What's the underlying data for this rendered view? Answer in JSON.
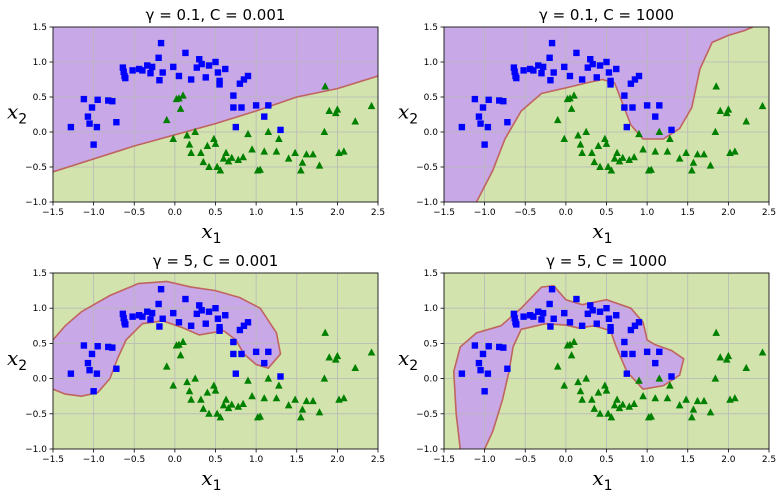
{
  "colors": {
    "purple_region": "#c8a8e6",
    "green_region": "#d2e3ad",
    "boundary": "#c0645f",
    "class0": "#0000ff",
    "class1": "#008000",
    "grid": "#b8b8b8"
  },
  "chart_data": [
    {
      "type": "scatter",
      "title": "γ = 0.1, C = 0.001",
      "xlabel": "x",
      "xlabel_sub": "1",
      "ylabel": "x",
      "ylabel_sub": "2",
      "xlim": [
        -1.5,
        2.5
      ],
      "ylim": [
        -1.0,
        1.5
      ],
      "xticks": [
        -1.5,
        -1.0,
        -0.5,
        0.0,
        0.5,
        1.0,
        1.5,
        2.0,
        2.5
      ],
      "yticks": [
        -1.0,
        -0.5,
        0.0,
        0.5,
        1.0,
        1.5
      ],
      "grid": true,
      "boundary": [
        [
          -1.5,
          -0.57
        ],
        [
          -0.5,
          -0.2
        ],
        [
          0.5,
          0.12
        ],
        [
          1.0,
          0.3
        ],
        [
          1.5,
          0.5
        ],
        [
          2.0,
          0.62
        ],
        [
          2.5,
          0.8
        ]
      ]
    },
    {
      "type": "scatter",
      "title": "γ = 0.1, C = 1000",
      "xlabel": "x",
      "xlabel_sub": "1",
      "ylabel": "x",
      "ylabel_sub": "2",
      "xlim": [
        -1.5,
        2.5
      ],
      "ylim": [
        -1.0,
        1.5
      ],
      "xticks": [
        -1.5,
        -1.0,
        -0.5,
        0.0,
        0.5,
        1.0,
        1.5,
        2.0,
        2.5
      ],
      "yticks": [
        -1.0,
        -0.5,
        0.0,
        0.5,
        1.0,
        1.5
      ],
      "grid": true,
      "boundary": [
        [
          -1.1,
          -1.0
        ],
        [
          -0.9,
          -0.55
        ],
        [
          -0.75,
          -0.1
        ],
        [
          -0.55,
          0.3
        ],
        [
          -0.3,
          0.55
        ],
        [
          0.0,
          0.63
        ],
        [
          0.25,
          0.7
        ],
        [
          0.45,
          0.75
        ],
        [
          0.6,
          0.7
        ],
        [
          0.7,
          0.4
        ],
        [
          0.8,
          0.1
        ],
        [
          0.95,
          -0.1
        ],
        [
          1.2,
          -0.1
        ],
        [
          1.4,
          0.05
        ],
        [
          1.55,
          0.35
        ],
        [
          1.65,
          0.9
        ],
        [
          1.8,
          1.28
        ],
        [
          2.0,
          1.38
        ],
        [
          2.2,
          1.45
        ],
        [
          2.3,
          1.5
        ]
      ]
    },
    {
      "type": "scatter",
      "title": "γ = 5, C = 0.001",
      "xlabel": "x",
      "xlabel_sub": "1",
      "ylabel": "x",
      "ylabel_sub": "2",
      "xlim": [
        -1.5,
        2.5
      ],
      "ylim": [
        -1.0,
        1.5
      ],
      "xticks": [
        -1.5,
        -1.0,
        -0.5,
        0.0,
        0.5,
        1.0,
        1.5,
        2.0,
        2.5
      ],
      "yticks": [
        -1.0,
        -0.5,
        0.0,
        0.5,
        1.0,
        1.5
      ],
      "grid": true,
      "boundary": [
        [
          -1.5,
          0.55
        ],
        [
          -1.35,
          0.75
        ],
        [
          -1.15,
          0.95
        ],
        [
          -0.8,
          1.18
        ],
        [
          -0.45,
          1.35
        ],
        [
          -0.1,
          1.38
        ],
        [
          0.2,
          1.3
        ],
        [
          0.5,
          1.25
        ],
        [
          0.8,
          1.15
        ],
        [
          1.05,
          1.0
        ],
        [
          1.25,
          0.65
        ],
        [
          1.3,
          0.35
        ],
        [
          1.15,
          0.15
        ],
        [
          1.0,
          0.2
        ],
        [
          0.85,
          0.35
        ],
        [
          0.75,
          0.55
        ],
        [
          0.6,
          0.68
        ],
        [
          0.3,
          0.62
        ],
        [
          0.1,
          0.72
        ],
        [
          -0.15,
          0.82
        ],
        [
          -0.4,
          0.78
        ],
        [
          -0.6,
          0.55
        ],
        [
          -0.7,
          0.3
        ],
        [
          -0.8,
          0.0
        ],
        [
          -0.95,
          -0.2
        ],
        [
          -1.15,
          -0.25
        ],
        [
          -1.35,
          -0.22
        ],
        [
          -1.5,
          -0.15
        ]
      ]
    },
    {
      "type": "scatter",
      "title": "γ = 5, C = 1000",
      "xlabel": "x",
      "xlabel_sub": "1",
      "ylabel": "x",
      "ylabel_sub": "2",
      "xlim": [
        -1.5,
        2.5
      ],
      "ylim": [
        -1.0,
        1.5
      ],
      "xticks": [
        -1.5,
        -1.0,
        -0.5,
        0.0,
        0.5,
        1.0,
        1.5,
        2.0,
        2.5
      ],
      "yticks": [
        -1.0,
        -0.5,
        0.0,
        0.5,
        1.0,
        1.5
      ],
      "grid": true,
      "boundary": [
        [
          -1.3,
          -1.0
        ],
        [
          -1.35,
          -0.5
        ],
        [
          -1.38,
          0.1
        ],
        [
          -1.3,
          0.45
        ],
        [
          -1.1,
          0.65
        ],
        [
          -0.8,
          0.75
        ],
        [
          -0.55,
          1.0
        ],
        [
          -0.3,
          1.3
        ],
        [
          -0.15,
          1.32
        ],
        [
          0.0,
          1.12
        ],
        [
          0.2,
          1.05
        ],
        [
          0.5,
          1.12
        ],
        [
          0.8,
          1.0
        ],
        [
          0.95,
          0.8
        ],
        [
          1.0,
          0.55
        ],
        [
          1.1,
          0.48
        ],
        [
          1.3,
          0.4
        ],
        [
          1.45,
          0.28
        ],
        [
          1.4,
          0.05
        ],
        [
          1.2,
          -0.1
        ],
        [
          0.95,
          -0.15
        ],
        [
          0.75,
          0.1
        ],
        [
          0.62,
          0.45
        ],
        [
          0.55,
          0.68
        ],
        [
          0.35,
          0.75
        ],
        [
          0.15,
          0.72
        ],
        [
          0.0,
          0.76
        ],
        [
          -0.25,
          0.78
        ],
        [
          -0.55,
          0.7
        ],
        [
          -0.65,
          0.45
        ],
        [
          -0.7,
          0.1
        ],
        [
          -0.78,
          -0.3
        ],
        [
          -0.9,
          -0.75
        ],
        [
          -1.0,
          -1.0
        ]
      ]
    }
  ],
  "points": {
    "class0": [
      [
        -1.28,
        0.07
      ],
      [
        -1.12,
        0.47
      ],
      [
        -1.07,
        0.22
      ],
      [
        -1.05,
        0.12
      ],
      [
        -1.02,
        0.35
      ],
      [
        -1.0,
        -0.18
      ],
      [
        -0.96,
        0.07
      ],
      [
        -0.95,
        0.46
      ],
      [
        -0.82,
        0.45
      ],
      [
        -0.77,
        0.44
      ],
      [
        -0.72,
        0.14
      ],
      [
        -0.64,
        0.92
      ],
      [
        -0.63,
        0.86
      ],
      [
        -0.62,
        0.8
      ],
      [
        -0.61,
        0.77
      ],
      [
        -0.52,
        0.88
      ],
      [
        -0.44,
        0.9
      ],
      [
        -0.4,
        0.88
      ],
      [
        -0.34,
        0.95
      ],
      [
        -0.3,
        0.84
      ],
      [
        -0.28,
        0.93
      ],
      [
        -0.2,
        1.06
      ],
      [
        -0.19,
        0.74
      ],
      [
        -0.17,
        1.27
      ],
      [
        -0.15,
        0.85
      ],
      [
        -0.02,
        0.93
      ],
      [
        0.05,
        0.8
      ],
      [
        0.13,
        1.13
      ],
      [
        0.2,
        0.75
      ],
      [
        0.27,
        0.92
      ],
      [
        0.3,
        1.04
      ],
      [
        0.33,
        0.97
      ],
      [
        0.38,
        0.78
      ],
      [
        0.42,
        0.95
      ],
      [
        0.5,
        1.0
      ],
      [
        0.53,
        0.85
      ],
      [
        0.55,
        0.73
      ],
      [
        0.55,
        0.68
      ],
      [
        0.62,
        0.9
      ],
      [
        0.72,
        0.52
      ],
      [
        0.72,
        0.35
      ],
      [
        0.75,
        0.07
      ],
      [
        0.8,
        0.69
      ],
      [
        0.82,
        0.35
      ],
      [
        0.85,
        0.75
      ],
      [
        0.9,
        0.8
      ],
      [
        1.0,
        0.38
      ],
      [
        1.1,
        0.22
      ],
      [
        1.15,
        0.38
      ],
      [
        1.3,
        0.03
      ]
    ],
    "class1": [
      [
        -0.1,
        0.17
      ],
      [
        -0.02,
        -0.1
      ],
      [
        0.02,
        0.47
      ],
      [
        0.05,
        0.48
      ],
      [
        0.07,
        0.33
      ],
      [
        0.1,
        0.52
      ],
      [
        0.15,
        -0.05
      ],
      [
        0.18,
        -0.18
      ],
      [
        0.2,
        -0.3
      ],
      [
        0.25,
        0.0
      ],
      [
        0.32,
        -0.3
      ],
      [
        0.35,
        -0.43
      ],
      [
        0.4,
        -0.2
      ],
      [
        0.42,
        -0.5
      ],
      [
        0.48,
        -0.1
      ],
      [
        0.5,
        -0.17
      ],
      [
        0.52,
        -0.5
      ],
      [
        0.56,
        -0.55
      ],
      [
        0.6,
        -0.38
      ],
      [
        0.63,
        -0.3
      ],
      [
        0.66,
        -0.42
      ],
      [
        0.7,
        -0.37
      ],
      [
        0.78,
        -0.4
      ],
      [
        0.84,
        -0.36
      ],
      [
        0.9,
        -0.03
      ],
      [
        0.95,
        -0.25
      ],
      [
        1.02,
        -0.55
      ],
      [
        1.05,
        -0.54
      ],
      [
        1.1,
        -0.28
      ],
      [
        1.15,
        0.0
      ],
      [
        1.25,
        -0.28
      ],
      [
        1.28,
        -0.1
      ],
      [
        1.4,
        -0.38
      ],
      [
        1.48,
        -0.3
      ],
      [
        1.55,
        -0.55
      ],
      [
        1.57,
        -0.44
      ],
      [
        1.62,
        -0.32
      ],
      [
        1.7,
        -0.32
      ],
      [
        1.78,
        -0.48
      ],
      [
        1.84,
        0.0
      ],
      [
        1.85,
        0.65
      ],
      [
        1.9,
        0.3
      ],
      [
        1.98,
        0.27
      ],
      [
        2.0,
        0.32
      ],
      [
        2.02,
        -0.3
      ],
      [
        2.08,
        -0.28
      ],
      [
        2.22,
        0.15
      ],
      [
        2.42,
        0.37
      ]
    ]
  }
}
